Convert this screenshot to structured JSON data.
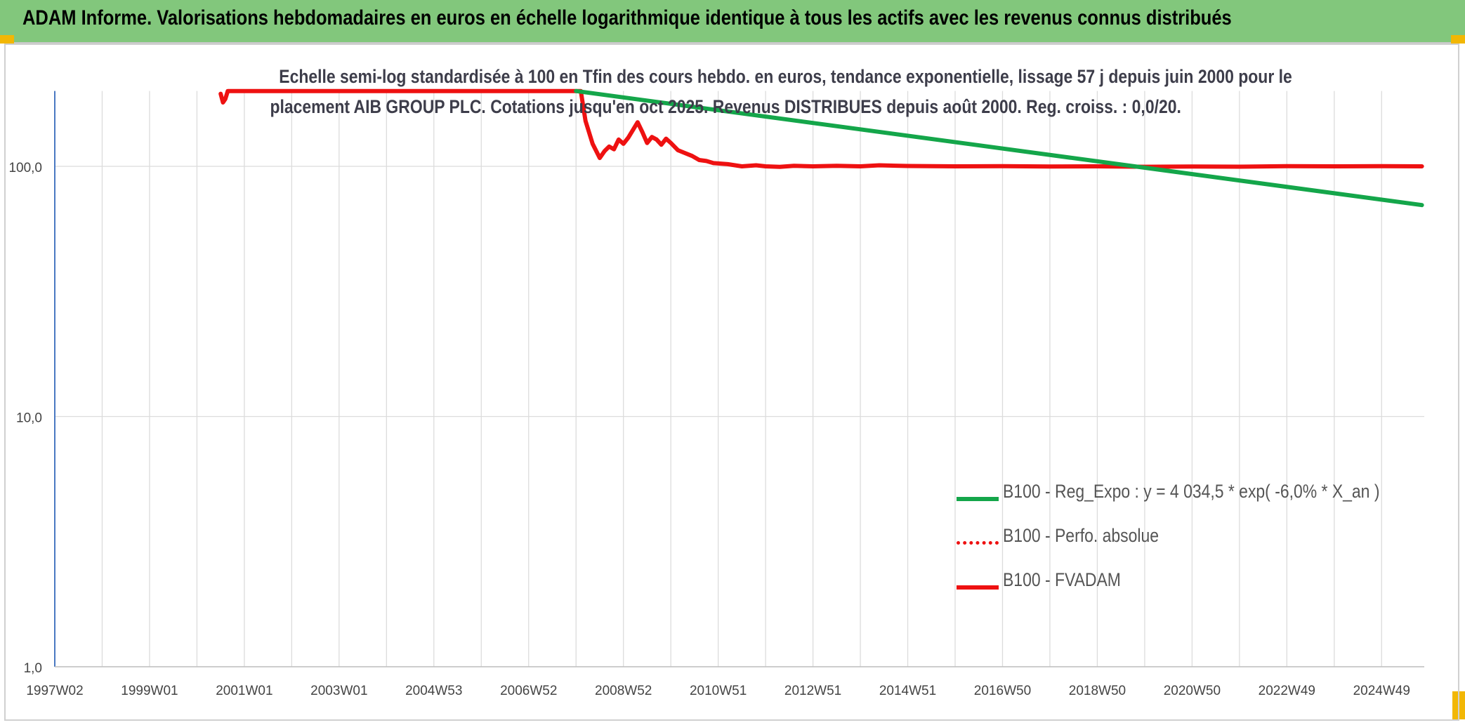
{
  "banner": {
    "title": "ADAM Informe. Valorisations hebdomadaires en euros en échelle logarithmique identique à tous les actifs avec les revenus connus distribués"
  },
  "colors": {
    "banner_bg": "#82c77c",
    "corner_accent": "#f2b705",
    "reg_expo": "#14a64a",
    "fvadam": "#ee1111",
    "perfo": "#ee1111",
    "grid": "#dcdcdc",
    "axis": "#4a78c2"
  },
  "chart_data": {
    "type": "line",
    "title_line1": "Echelle semi-log standardisée à 100 en Tfin des cours hebdo. en euros, tendance exponentielle, lissage 57 j depuis juin 2000 pour le",
    "title_line2": "placement AIB GROUP PLC. Cotations jusqu'en oct 2025. Revenus DISTRIBUES depuis août 2000. Reg. croiss. : 0,0/20.",
    "y_scale": "log",
    "ylim": [
      1,
      200
    ],
    "y_ticks": [
      1,
      10,
      100
    ],
    "y_tick_labels": [
      "1,0",
      "10,0",
      "100,0"
    ],
    "xlim": [
      1997.0,
      2025.9
    ],
    "x_ticks": [
      1997.0,
      1999.0,
      2001.0,
      2003.0,
      2005.0,
      2007.0,
      2009.0,
      2011.0,
      2013.0,
      2015.0,
      2017.0,
      2019.0,
      2021.0,
      2023.0,
      2025.0
    ],
    "x_tick_labels": [
      "1997W02",
      "1999W01",
      "2001W01",
      "2003W01",
      "2004W53",
      "2006W52",
      "2008W52",
      "2010W51",
      "2012W51",
      "2014W51",
      "2016W50",
      "2018W50",
      "2020W50",
      "2022W49",
      "2024W49"
    ],
    "grid": true,
    "legend_position": "lower-right",
    "series": [
      {
        "name": "B100 - Reg_Expo : y = 4 034,5 * exp( -6,0% *  X_an )",
        "style": "solid",
        "x": [
          2008.0,
          2025.85
        ],
        "y": [
          200,
          70
        ]
      },
      {
        "name": "B100 - Perfo. absolue",
        "style": "dotted",
        "x": [],
        "y": []
      },
      {
        "name": "B100 - FVADAM",
        "style": "solid",
        "x": [
          2000.5,
          2000.55,
          2000.6,
          2000.65,
          2008.1,
          2008.2,
          2008.35,
          2008.5,
          2008.6,
          2008.7,
          2008.8,
          2008.9,
          2009.0,
          2009.1,
          2009.3,
          2009.4,
          2009.5,
          2009.6,
          2009.7,
          2009.8,
          2009.9,
          2010.0,
          2010.15,
          2010.3,
          2010.45,
          2010.6,
          2010.75,
          2010.9,
          2011.2,
          2011.5,
          2011.8,
          2012.0,
          2012.3,
          2012.6,
          2013.0,
          2013.5,
          2014.0,
          2014.4,
          2015.0,
          2016.0,
          2017.0,
          2018.0,
          2019.0,
          2020.0,
          2021.0,
          2022.0,
          2023.0,
          2024.0,
          2025.0,
          2025.85
        ],
        "y": [
          195,
          180,
          186,
          200,
          200,
          152,
          123,
          108,
          115,
          120,
          117,
          128,
          123,
          130,
          150,
          137,
          124,
          131,
          128,
          122,
          129,
          124,
          116,
          113,
          110,
          106,
          105,
          103,
          102,
          100,
          101,
          100,
          99.5,
          100.5,
          100,
          100.5,
          100,
          101,
          100.3,
          100,
          100.2,
          99.8,
          100,
          99.6,
          99.8,
          99.7,
          100.1,
          100,
          100.2,
          100
        ]
      }
    ]
  }
}
